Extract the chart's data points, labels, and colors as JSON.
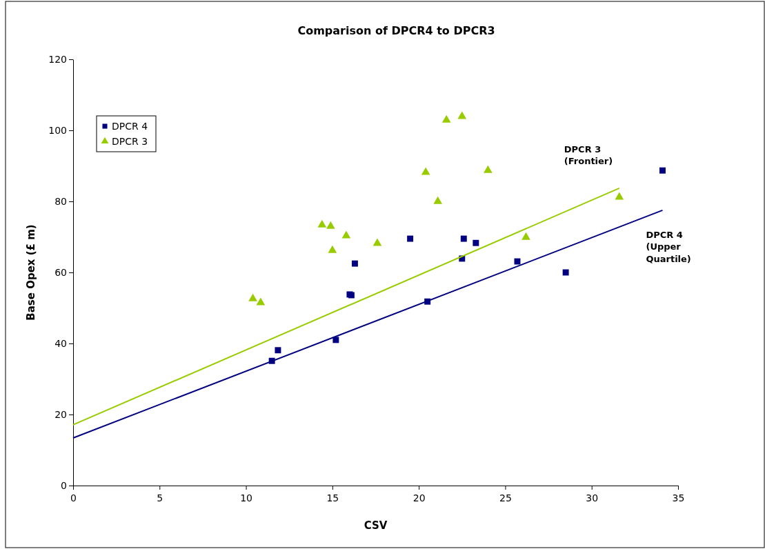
{
  "chart_data": {
    "type": "scatter",
    "title": "Comparison of DPCR4 to DPCR3",
    "xlabel": "CSV",
    "ylabel": "Base Opex (£ m)",
    "xlim": [
      0,
      35
    ],
    "xticks": [
      0,
      5,
      10,
      15,
      20,
      25,
      30,
      35
    ],
    "ylim": [
      0,
      120
    ],
    "yticks": [
      0,
      20,
      40,
      60,
      80,
      100,
      120
    ],
    "grid": false,
    "legend": "top left",
    "series": [
      {
        "name": "DPCR 4",
        "color": "#000080",
        "marker": "square",
        "x": [
          11.5,
          11.85,
          15.2,
          16.0,
          16.1,
          16.3,
          19.5,
          20.5,
          22.5,
          22.6,
          23.3,
          25.7,
          28.5,
          34.1
        ],
        "values": [
          35.1,
          38.1,
          41.0,
          53.8,
          53.6,
          62.5,
          69.5,
          51.8,
          63.9,
          69.5,
          68.3,
          63.1,
          60.0,
          88.7
        ]
      },
      {
        "name": "DPCR 3",
        "color": "#99cc00",
        "marker": "triangle",
        "x": [
          10.4,
          10.85,
          14.4,
          14.9,
          15.0,
          15.8,
          17.6,
          20.4,
          21.1,
          21.6,
          22.5,
          24.0,
          26.2,
          31.6
        ],
        "values": [
          52.6,
          51.5,
          73.4,
          73.0,
          66.2,
          70.3,
          68.2,
          88.2,
          80.0,
          102.9,
          103.9,
          88.7,
          69.9,
          81.2
        ]
      },
      {
        "type": "line",
        "color": "#99cc00",
        "marker": "none",
        "x": [
          0,
          31.6
        ],
        "values": [
          17.1,
          83.7
        ]
      },
      {
        "type": "line",
        "color": "#000080",
        "marker": "none",
        "x": [
          0,
          34.1
        ],
        "values": [
          13.4,
          77.5
        ]
      }
    ],
    "annotations": [
      "DPCR 3\n(Frontier)",
      "DPCR 4\n(Upper\nQuartile)"
    ]
  }
}
